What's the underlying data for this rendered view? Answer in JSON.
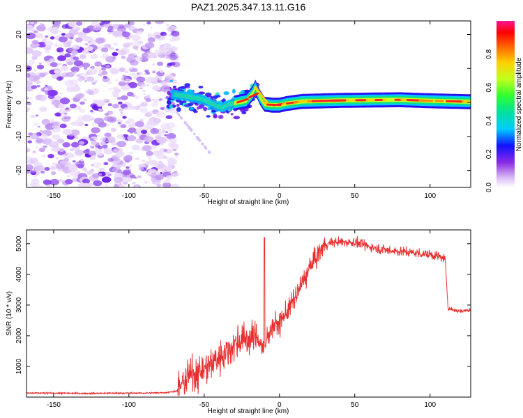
{
  "title": "PAZ1.2025.347.13.11.G16",
  "chart_data": [
    {
      "type": "heatmap",
      "name": "spectrogram",
      "xlabel": "Height of straight line (km)",
      "ylabel": "Frequency (Hz)",
      "xlim": [
        -168,
        127
      ],
      "ylim": [
        -25,
        24
      ],
      "xticks": [
        -150,
        -100,
        -50,
        0,
        50,
        100
      ],
      "xtick_labels": [
        "-150",
        "-100",
        "-50",
        "0",
        "50",
        "100"
      ],
      "yticks": [
        -20,
        -10,
        0,
        10,
        20
      ],
      "ytick_labels": [
        "-20",
        "-10",
        "0",
        "10",
        "20"
      ],
      "colorbar": {
        "label": "Normalized spectral amplitude",
        "range": [
          0,
          1
        ],
        "ticks": [
          0.0,
          0.2,
          0.4,
          0.6,
          0.8
        ],
        "tick_labels": [
          "0.0",
          "0.2",
          "0.4",
          "0.6",
          "0.8"
        ]
      },
      "features": {
        "noise_region_x": [
          -168,
          -72
        ],
        "ridge": [
          {
            "x": -72,
            "f": 2.5
          },
          {
            "x": -65,
            "f": 2.0
          },
          {
            "x": -58,
            "f": 1.5
          },
          {
            "x": -52,
            "f": 1.0
          },
          {
            "x": -47,
            "f": 0.0
          },
          {
            "x": -42,
            "f": -1.0
          },
          {
            "x": -38,
            "f": -1.5
          },
          {
            "x": -33,
            "f": -0.5
          },
          {
            "x": -28,
            "f": 0.0
          },
          {
            "x": -22,
            "f": 0.5
          },
          {
            "x": -18,
            "f": 2.5
          },
          {
            "x": -16,
            "f": 4.5
          },
          {
            "x": -13,
            "f": 1.5
          },
          {
            "x": -10,
            "f": -0.5
          },
          {
            "x": -5,
            "f": -0.8
          },
          {
            "x": 0,
            "f": -0.8
          },
          {
            "x": 5,
            "f": -0.3
          },
          {
            "x": 15,
            "f": 0.3
          },
          {
            "x": 40,
            "f": 0.6
          },
          {
            "x": 60,
            "f": 0.7
          },
          {
            "x": 80,
            "f": 0.8
          },
          {
            "x": 100,
            "f": 0.5
          },
          {
            "x": 127,
            "f": 0.2
          }
        ]
      }
    },
    {
      "type": "line",
      "name": "snr",
      "xlabel": "Height of straight line (km)",
      "ylabel": "SNR (10 * v/v)",
      "xlim": [
        -168,
        127
      ],
      "ylim": [
        0,
        5450
      ],
      "xticks": [
        -150,
        -100,
        -50,
        0,
        50,
        100
      ],
      "xtick_labels": [
        "-150",
        "-100",
        "-50",
        "0",
        "50",
        "100"
      ],
      "yticks": [
        1000,
        2000,
        3000,
        4000,
        5000
      ],
      "ytick_labels": [
        "1000",
        "2000",
        "3000",
        "4000",
        "5000"
      ],
      "color": "#e83030",
      "series": [
        {
          "name": "SNR",
          "x": [
            -168,
            -150,
            -130,
            -110,
            -90,
            -75,
            -68,
            -65,
            -60,
            -55,
            -50,
            -45,
            -40,
            -35,
            -30,
            -25,
            -20,
            -15,
            -12,
            -10,
            -8,
            -5,
            0,
            5,
            10,
            15,
            20,
            25,
            30,
            35,
            40,
            50,
            60,
            70,
            80,
            90,
            100,
            105,
            110,
            112,
            115,
            120,
            127
          ],
          "y": [
            130,
            130,
            120,
            130,
            130,
            150,
            200,
            400,
            700,
            800,
            900,
            1100,
            1300,
            1500,
            1700,
            1900,
            1900,
            2000,
            1700,
            1500,
            2000,
            2300,
            2400,
            2800,
            3200,
            3700,
            4200,
            4600,
            4950,
            5050,
            5050,
            5050,
            4900,
            4800,
            4750,
            4700,
            4650,
            4600,
            4500,
            2900,
            2850,
            2800,
            2850
          ]
        }
      ],
      "annotations": [
        {
          "x": -10,
          "y": 5200,
          "note": "spike"
        }
      ]
    }
  ]
}
